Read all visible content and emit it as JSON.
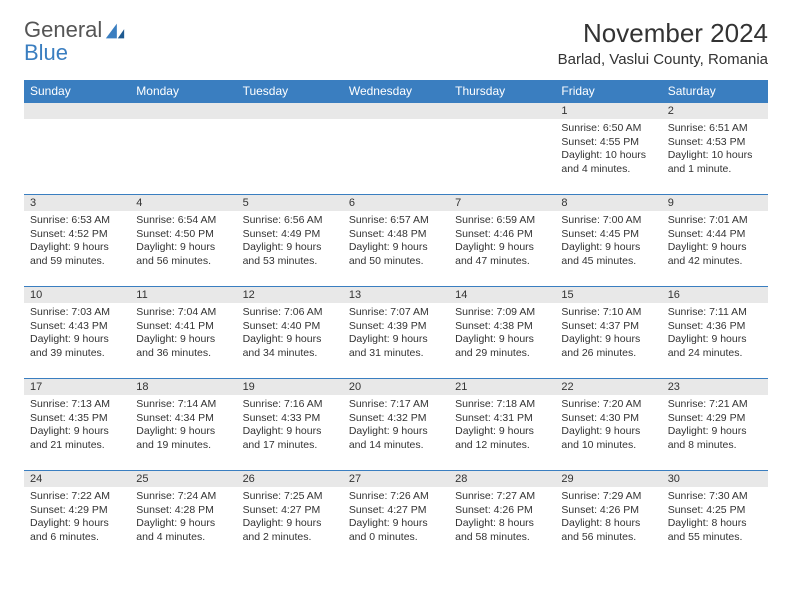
{
  "logo": {
    "general": "General",
    "blue": "Blue"
  },
  "title": "November 2024",
  "location": "Barlad, Vaslui County, Romania",
  "colors": {
    "header_bg": "#3a7ec0",
    "band_bg": "#e8e8e8",
    "border": "#3a7ec0",
    "text": "#333333",
    "white": "#ffffff"
  },
  "fonts": {
    "title_size": 26,
    "location_size": 15,
    "header_size": 12,
    "daynum_size": 11,
    "body_size": 10.5
  },
  "headers": [
    "Sunday",
    "Monday",
    "Tuesday",
    "Wednesday",
    "Thursday",
    "Friday",
    "Saturday"
  ],
  "weeks": [
    [
      null,
      null,
      null,
      null,
      null,
      {
        "n": "1",
        "sr": "Sunrise: 6:50 AM",
        "ss": "Sunset: 4:55 PM",
        "dl1": "Daylight: 10 hours",
        "dl2": "and 4 minutes."
      },
      {
        "n": "2",
        "sr": "Sunrise: 6:51 AM",
        "ss": "Sunset: 4:53 PM",
        "dl1": "Daylight: 10 hours",
        "dl2": "and 1 minute."
      }
    ],
    [
      {
        "n": "3",
        "sr": "Sunrise: 6:53 AM",
        "ss": "Sunset: 4:52 PM",
        "dl1": "Daylight: 9 hours",
        "dl2": "and 59 minutes."
      },
      {
        "n": "4",
        "sr": "Sunrise: 6:54 AM",
        "ss": "Sunset: 4:50 PM",
        "dl1": "Daylight: 9 hours",
        "dl2": "and 56 minutes."
      },
      {
        "n": "5",
        "sr": "Sunrise: 6:56 AM",
        "ss": "Sunset: 4:49 PM",
        "dl1": "Daylight: 9 hours",
        "dl2": "and 53 minutes."
      },
      {
        "n": "6",
        "sr": "Sunrise: 6:57 AM",
        "ss": "Sunset: 4:48 PM",
        "dl1": "Daylight: 9 hours",
        "dl2": "and 50 minutes."
      },
      {
        "n": "7",
        "sr": "Sunrise: 6:59 AM",
        "ss": "Sunset: 4:46 PM",
        "dl1": "Daylight: 9 hours",
        "dl2": "and 47 minutes."
      },
      {
        "n": "8",
        "sr": "Sunrise: 7:00 AM",
        "ss": "Sunset: 4:45 PM",
        "dl1": "Daylight: 9 hours",
        "dl2": "and 45 minutes."
      },
      {
        "n": "9",
        "sr": "Sunrise: 7:01 AM",
        "ss": "Sunset: 4:44 PM",
        "dl1": "Daylight: 9 hours",
        "dl2": "and 42 minutes."
      }
    ],
    [
      {
        "n": "10",
        "sr": "Sunrise: 7:03 AM",
        "ss": "Sunset: 4:43 PM",
        "dl1": "Daylight: 9 hours",
        "dl2": "and 39 minutes."
      },
      {
        "n": "11",
        "sr": "Sunrise: 7:04 AM",
        "ss": "Sunset: 4:41 PM",
        "dl1": "Daylight: 9 hours",
        "dl2": "and 36 minutes."
      },
      {
        "n": "12",
        "sr": "Sunrise: 7:06 AM",
        "ss": "Sunset: 4:40 PM",
        "dl1": "Daylight: 9 hours",
        "dl2": "and 34 minutes."
      },
      {
        "n": "13",
        "sr": "Sunrise: 7:07 AM",
        "ss": "Sunset: 4:39 PM",
        "dl1": "Daylight: 9 hours",
        "dl2": "and 31 minutes."
      },
      {
        "n": "14",
        "sr": "Sunrise: 7:09 AM",
        "ss": "Sunset: 4:38 PM",
        "dl1": "Daylight: 9 hours",
        "dl2": "and 29 minutes."
      },
      {
        "n": "15",
        "sr": "Sunrise: 7:10 AM",
        "ss": "Sunset: 4:37 PM",
        "dl1": "Daylight: 9 hours",
        "dl2": "and 26 minutes."
      },
      {
        "n": "16",
        "sr": "Sunrise: 7:11 AM",
        "ss": "Sunset: 4:36 PM",
        "dl1": "Daylight: 9 hours",
        "dl2": "and 24 minutes."
      }
    ],
    [
      {
        "n": "17",
        "sr": "Sunrise: 7:13 AM",
        "ss": "Sunset: 4:35 PM",
        "dl1": "Daylight: 9 hours",
        "dl2": "and 21 minutes."
      },
      {
        "n": "18",
        "sr": "Sunrise: 7:14 AM",
        "ss": "Sunset: 4:34 PM",
        "dl1": "Daylight: 9 hours",
        "dl2": "and 19 minutes."
      },
      {
        "n": "19",
        "sr": "Sunrise: 7:16 AM",
        "ss": "Sunset: 4:33 PM",
        "dl1": "Daylight: 9 hours",
        "dl2": "and 17 minutes."
      },
      {
        "n": "20",
        "sr": "Sunrise: 7:17 AM",
        "ss": "Sunset: 4:32 PM",
        "dl1": "Daylight: 9 hours",
        "dl2": "and 14 minutes."
      },
      {
        "n": "21",
        "sr": "Sunrise: 7:18 AM",
        "ss": "Sunset: 4:31 PM",
        "dl1": "Daylight: 9 hours",
        "dl2": "and 12 minutes."
      },
      {
        "n": "22",
        "sr": "Sunrise: 7:20 AM",
        "ss": "Sunset: 4:30 PM",
        "dl1": "Daylight: 9 hours",
        "dl2": "and 10 minutes."
      },
      {
        "n": "23",
        "sr": "Sunrise: 7:21 AM",
        "ss": "Sunset: 4:29 PM",
        "dl1": "Daylight: 9 hours",
        "dl2": "and 8 minutes."
      }
    ],
    [
      {
        "n": "24",
        "sr": "Sunrise: 7:22 AM",
        "ss": "Sunset: 4:29 PM",
        "dl1": "Daylight: 9 hours",
        "dl2": "and 6 minutes."
      },
      {
        "n": "25",
        "sr": "Sunrise: 7:24 AM",
        "ss": "Sunset: 4:28 PM",
        "dl1": "Daylight: 9 hours",
        "dl2": "and 4 minutes."
      },
      {
        "n": "26",
        "sr": "Sunrise: 7:25 AM",
        "ss": "Sunset: 4:27 PM",
        "dl1": "Daylight: 9 hours",
        "dl2": "and 2 minutes."
      },
      {
        "n": "27",
        "sr": "Sunrise: 7:26 AM",
        "ss": "Sunset: 4:27 PM",
        "dl1": "Daylight: 9 hours",
        "dl2": "and 0 minutes."
      },
      {
        "n": "28",
        "sr": "Sunrise: 7:27 AM",
        "ss": "Sunset: 4:26 PM",
        "dl1": "Daylight: 8 hours",
        "dl2": "and 58 minutes."
      },
      {
        "n": "29",
        "sr": "Sunrise: 7:29 AM",
        "ss": "Sunset: 4:26 PM",
        "dl1": "Daylight: 8 hours",
        "dl2": "and 56 minutes."
      },
      {
        "n": "30",
        "sr": "Sunrise: 7:30 AM",
        "ss": "Sunset: 4:25 PM",
        "dl1": "Daylight: 8 hours",
        "dl2": "and 55 minutes."
      }
    ]
  ]
}
